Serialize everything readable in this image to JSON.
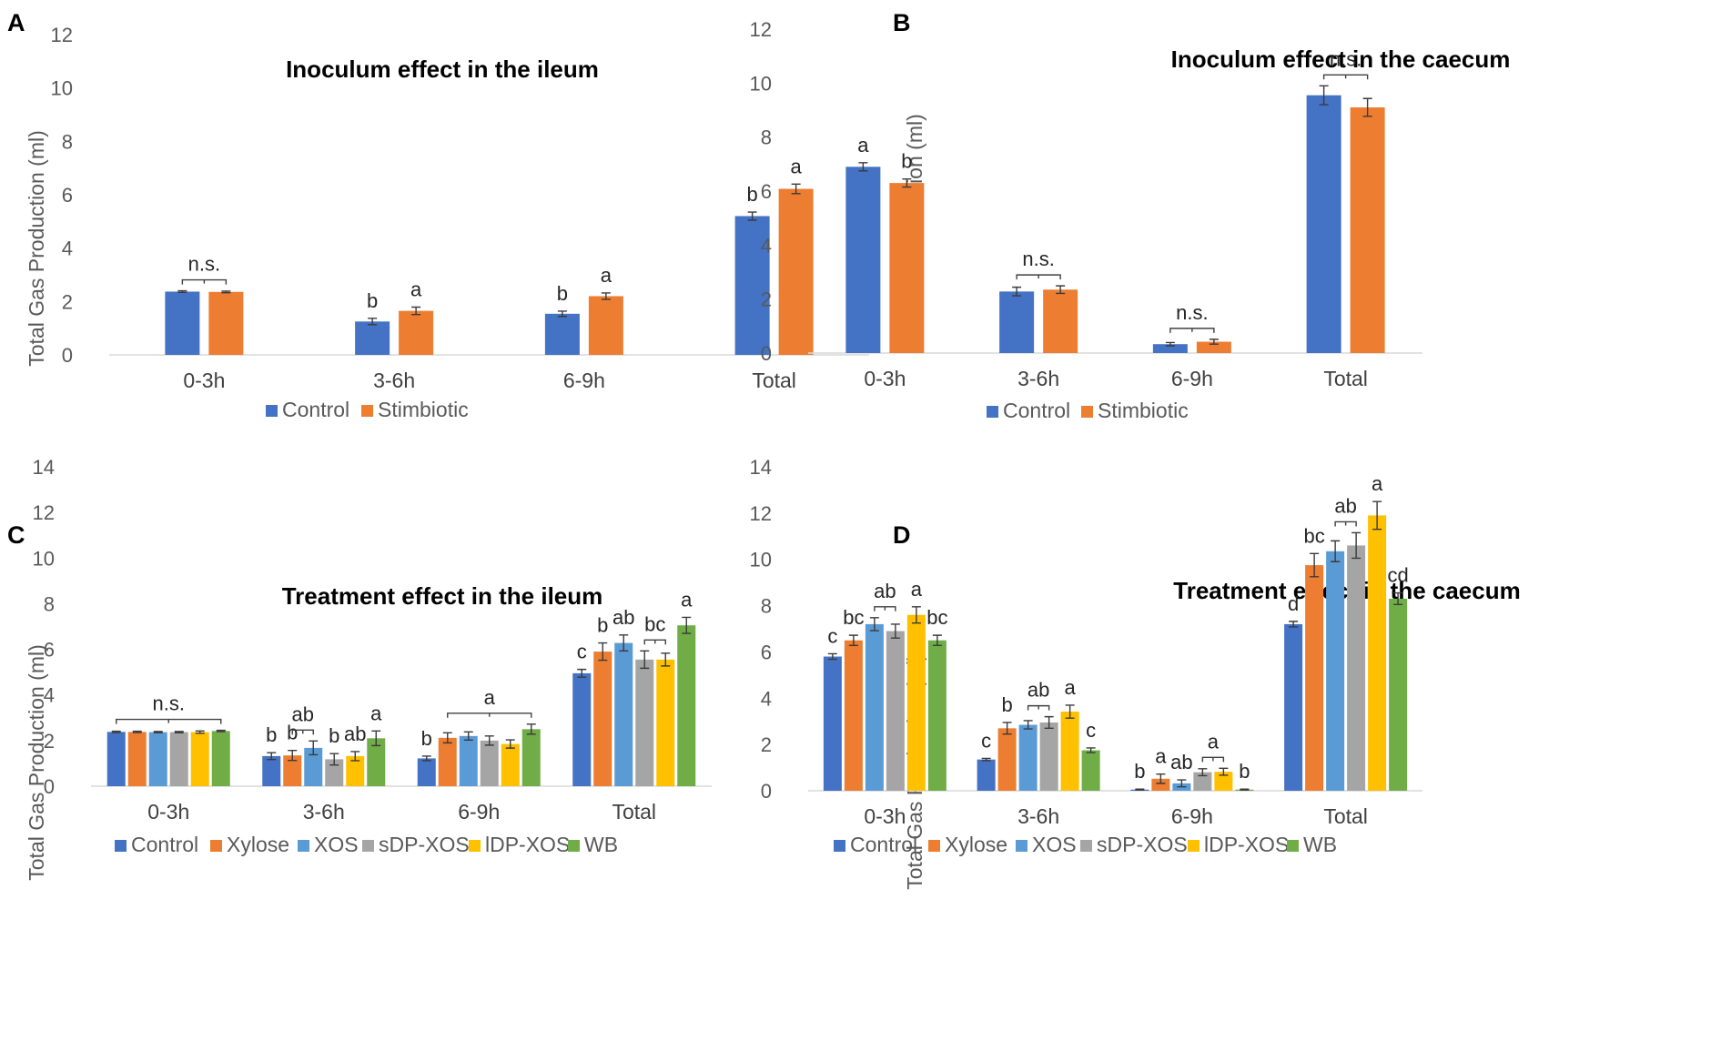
{
  "colors": {
    "Control": "#4472c4",
    "Stimbiotic": "#ed7d31",
    "Xylose": "#ed7d31",
    "XOS": "#5b9bd5",
    "sDP-XOS": "#a5a5a5",
    "lDP-XOS": "#ffc000",
    "WB": "#70ad47"
  },
  "chart_data": [
    {
      "panel": "A",
      "type": "bar",
      "title": "Inoculum effect in the ileum",
      "xlabel": "",
      "ylabel": "Total Gas Production (ml)",
      "ylim": [
        0,
        12
      ],
      "yticks": [
        "0",
        "2",
        "4",
        "6",
        "8",
        "10",
        "12"
      ],
      "legend_position": "bottom",
      "categories": [
        "0-3h",
        "3-6h",
        "6-9h",
        "Total"
      ],
      "series": [
        {
          "name": "Control",
          "values": [
            2.37,
            1.25,
            1.54,
            5.2
          ],
          "errors": [
            0.03,
            0.12,
            0.1,
            0.15
          ],
          "labels": [
            "",
            "b",
            "b",
            "b"
          ]
        },
        {
          "name": "Stimbiotic",
          "values": [
            2.36,
            1.65,
            2.2,
            6.22
          ],
          "errors": [
            0.03,
            0.14,
            0.12,
            0.18
          ],
          "labels": [
            "",
            "a",
            "a",
            "a"
          ]
        }
      ],
      "brackets": [
        {
          "category": 0,
          "from": 0,
          "to": 1,
          "label": "n.s."
        }
      ]
    },
    {
      "panel": "B",
      "type": "bar",
      "title": "Inoculum effect in the caecum",
      "xlabel": "",
      "ylabel": "Total Gas Production (ml)",
      "ylim": [
        0,
        12
      ],
      "yticks": [
        "0",
        "2",
        "4",
        "6",
        "8",
        "10",
        "12"
      ],
      "legend_position": "bottom",
      "categories": [
        "0-3h",
        "3-6h",
        "6-9h",
        "Total"
      ],
      "series": [
        {
          "name": "Control",
          "values": [
            6.9,
            2.28,
            0.33,
            9.55
          ],
          "errors": [
            0.15,
            0.16,
            0.06,
            0.35
          ],
          "labels": [
            "a",
            "",
            "",
            ""
          ]
        },
        {
          "name": "Stimbiotic",
          "values": [
            6.3,
            2.35,
            0.42,
            9.1
          ],
          "errors": [
            0.15,
            0.14,
            0.09,
            0.33
          ],
          "labels": [
            "b",
            "",
            "",
            ""
          ]
        }
      ],
      "brackets": [
        {
          "category": 1,
          "from": 0,
          "to": 1,
          "label": "n.s."
        },
        {
          "category": 2,
          "from": 0,
          "to": 1,
          "label": "n.s."
        },
        {
          "category": 3,
          "from": 0,
          "to": 1,
          "label": "n.s."
        }
      ]
    },
    {
      "panel": "C",
      "type": "bar",
      "title": "Treatment effect in the ileum",
      "xlabel": "",
      "ylabel": "Total Gas Production (ml)",
      "ylim": [
        0,
        14
      ],
      "yticks": [
        "0",
        "2",
        "4",
        "6",
        "8",
        "10",
        "12",
        "14"
      ],
      "legend_position": "bottom",
      "categories": [
        "0-3h",
        "3-6h",
        "6-9h",
        "Total"
      ],
      "series": [
        {
          "name": "Control",
          "values": [
            2.38,
            1.32,
            1.22,
            4.95
          ],
          "errors": [
            0.03,
            0.15,
            0.1,
            0.17
          ],
          "labels": [
            "",
            "b",
            "b",
            "c"
          ]
        },
        {
          "name": "Xylose",
          "values": [
            2.38,
            1.35,
            2.12,
            5.9
          ],
          "errors": [
            0.03,
            0.22,
            0.22,
            0.38
          ],
          "labels": [
            "",
            "b",
            "",
            "b"
          ]
        },
        {
          "name": "XOS",
          "values": [
            2.37,
            1.68,
            2.2,
            6.28
          ],
          "errors": [
            0.03,
            0.3,
            0.18,
            0.35
          ],
          "labels": [
            "",
            "",
            "",
            "ab"
          ]
        },
        {
          "name": "sDP-XOS",
          "values": [
            2.37,
            1.18,
            2.0,
            5.55
          ],
          "errors": [
            0.03,
            0.25,
            0.2,
            0.38
          ],
          "labels": [
            "",
            "b",
            "",
            ""
          ]
        },
        {
          "name": "lDP-XOS",
          "values": [
            2.37,
            1.32,
            1.85,
            5.55
          ],
          "errors": [
            0.05,
            0.2,
            0.18,
            0.28
          ],
          "labels": [
            "",
            "ab",
            "",
            ""
          ]
        },
        {
          "name": "WB",
          "values": [
            2.42,
            2.1,
            2.5,
            7.05
          ],
          "errors": [
            0.03,
            0.32,
            0.22,
            0.35
          ],
          "labels": [
            "",
            "a",
            "",
            "a"
          ]
        }
      ],
      "brackets": [
        {
          "category": 0,
          "from": 0,
          "to": 5,
          "label": "n.s."
        },
        {
          "category": 1,
          "from": 1,
          "to": 2,
          "label": "ab"
        },
        {
          "category": 2,
          "from": 1,
          "to": 5,
          "label": "a"
        },
        {
          "category": 3,
          "from": 3,
          "to": 4,
          "label": "bc"
        }
      ]
    },
    {
      "panel": "D",
      "type": "bar",
      "title": "Treatment effect in the caecum",
      "xlabel": "",
      "ylabel": "Total Gas Production (ml)",
      "ylim": [
        0,
        14
      ],
      "yticks": [
        "0",
        "2",
        "4",
        "6",
        "8",
        "10",
        "12",
        "14"
      ],
      "legend_position": "bottom",
      "categories": [
        "0-3h",
        "3-6h",
        "6-9h",
        "Total"
      ],
      "series": [
        {
          "name": "Control",
          "values": [
            5.8,
            1.35,
            0.05,
            7.2
          ],
          "errors": [
            0.12,
            0.05,
            0.02,
            0.12
          ],
          "labels": [
            "c",
            "c",
            "b",
            "d"
          ]
        },
        {
          "name": "Xylose",
          "values": [
            6.5,
            2.7,
            0.52,
            9.75
          ],
          "errors": [
            0.22,
            0.25,
            0.2,
            0.5
          ],
          "labels": [
            "bc",
            "b",
            "a",
            "bc"
          ]
        },
        {
          "name": "XOS",
          "values": [
            7.2,
            2.85,
            0.32,
            10.35
          ],
          "errors": [
            0.28,
            0.18,
            0.15,
            0.45
          ],
          "labels": [
            "",
            "",
            "ab",
            ""
          ]
        },
        {
          "name": "sDP-XOS",
          "values": [
            6.9,
            2.95,
            0.8,
            10.6
          ],
          "errors": [
            0.3,
            0.25,
            0.15,
            0.55
          ],
          "labels": [
            "",
            "",
            "",
            ""
          ]
        },
        {
          "name": "lDP-XOS",
          "values": [
            7.6,
            3.42,
            0.82,
            11.9
          ],
          "errors": [
            0.35,
            0.28,
            0.15,
            0.6
          ],
          "labels": [
            "a",
            "a",
            "",
            "a"
          ]
        },
        {
          "name": "WB",
          "values": [
            6.5,
            1.75,
            0.05,
            8.3
          ],
          "errors": [
            0.22,
            0.1,
            0.02,
            0.25
          ],
          "labels": [
            "bc",
            "c",
            "b",
            "cd"
          ]
        }
      ],
      "brackets": [
        {
          "category": 0,
          "from": 2,
          "to": 3,
          "label": "ab"
        },
        {
          "category": 1,
          "from": 2,
          "to": 3,
          "label": "ab"
        },
        {
          "category": 2,
          "from": 3,
          "to": 4,
          "label": "a"
        },
        {
          "category": 3,
          "from": 2,
          "to": 3,
          "label": "ab"
        }
      ]
    }
  ]
}
